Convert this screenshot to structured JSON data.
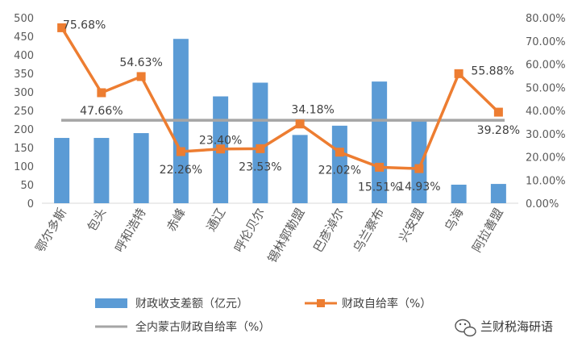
{
  "chart_data": {
    "type": "bar+line",
    "categories": [
      "鄂尔多斯",
      "包头",
      "呼和浩特",
      "赤峰",
      "通辽",
      "呼伦贝尔",
      "锡林郭勒盟",
      "巴彦淖尔",
      "乌兰察布",
      "兴安盟",
      "乌海",
      "阿拉善盟"
    ],
    "series": [
      {
        "name": "财政收支差额（亿元）",
        "type": "bar",
        "axis": "left",
        "color": "#5B9BD5",
        "values": [
          176,
          176,
          189,
          443,
          288,
          325,
          184,
          209,
          328,
          221,
          50,
          52
        ]
      },
      {
        "name": "财政自给率（%）",
        "type": "line",
        "axis": "right",
        "color": "#ED7D31",
        "marker": "square",
        "values": [
          75.68,
          47.66,
          54.63,
          22.26,
          23.4,
          23.53,
          34.18,
          22.02,
          15.51,
          14.93,
          55.88,
          39.28
        ],
        "labels": [
          "75.68%",
          "47.66%",
          "54.63%",
          "22.26%",
          "23.40%",
          "23.53%",
          "34.18%",
          "22.02%",
          "15.51%",
          "14.93%",
          "55.88%",
          "39.28%"
        ]
      },
      {
        "name": "全内蒙古财政自给率（%）",
        "type": "reference-line",
        "axis": "right",
        "color": "#A5A5A5",
        "value": 35.8
      }
    ],
    "y_left": {
      "ylim": [
        0,
        500
      ],
      "ticks": [
        "0",
        "50",
        "100",
        "150",
        "200",
        "250",
        "300",
        "350",
        "400",
        "450",
        "500"
      ]
    },
    "y_right": {
      "ylim": [
        0,
        80
      ],
      "ticks": [
        "0.00%",
        "10.00%",
        "20.00%",
        "30.00%",
        "40.00%",
        "50.00%",
        "60.00%",
        "70.00%",
        "80.00%"
      ]
    },
    "grid": false,
    "legend": "bottom",
    "title": "",
    "xlabel": "",
    "ylabel": ""
  },
  "watermark": {
    "text": "兰财税海研语",
    "icon": "wechat-icon"
  }
}
